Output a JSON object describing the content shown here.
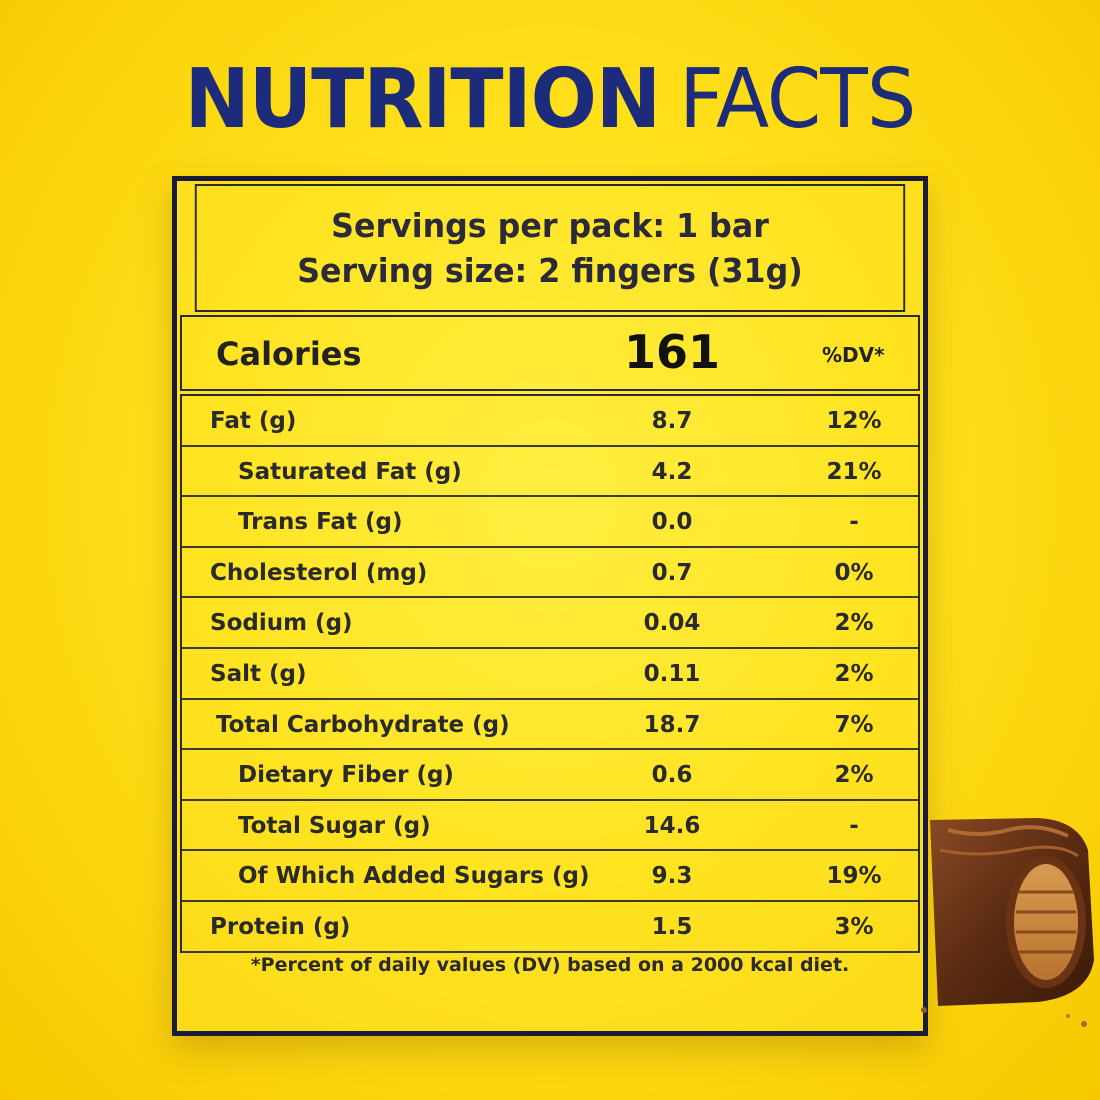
{
  "heading": {
    "word1": "NUTRITION",
    "word2": "FACTS"
  },
  "serving": {
    "per_pack": "Servings per pack: 1 bar",
    "size": "Serving size: 2 fingers (31g)"
  },
  "calories": {
    "label": "Calories",
    "value": "161",
    "dv_header": "%DV*"
  },
  "nutrients": [
    {
      "name": "Fat (g)",
      "value": "8.7",
      "dv": "12%"
    },
    {
      "name": "Saturated Fat (g)",
      "value": "4.2",
      "dv": "21%"
    },
    {
      "name": "Trans Fat (g)",
      "value": "0.0",
      "dv": "-"
    },
    {
      "name": "Cholesterol (mg)",
      "value": "0.7",
      "dv": "0%"
    },
    {
      "name": "Sodium (g)",
      "value": "0.04",
      "dv": "2%"
    },
    {
      "name": "Salt (g)",
      "value": "0.11",
      "dv": "2%"
    },
    {
      "name": "Total Carbohydrate (g)",
      "value": "18.7",
      "dv": "7%"
    },
    {
      "name": "Dietary Fiber (g)",
      "value": "0.6",
      "dv": "2%"
    },
    {
      "name": "Total Sugar (g)",
      "value": "14.6",
      "dv": "-"
    },
    {
      "name": "Of Which Added Sugars (g)",
      "value": "9.3",
      "dv": "19%"
    },
    {
      "name": "Protein (g)",
      "value": "1.5",
      "dv": "3%"
    }
  ],
  "footnote": "*Percent of daily values (DV) based on a 2000 kcal diet.",
  "colors": {
    "heading": "#1c2b7a",
    "background": "#ffe01a",
    "border": "#1a1a3a"
  },
  "images": {
    "product": "chocolate-wafer-bar"
  }
}
